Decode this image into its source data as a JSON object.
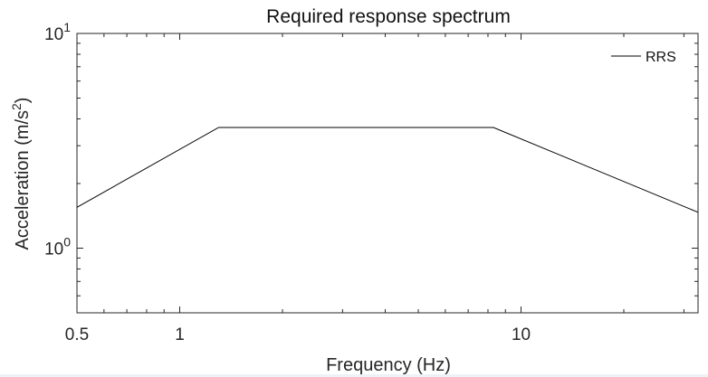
{
  "chart_data": {
    "type": "line",
    "title": "Required response spectrum",
    "xlabel": "Frequency (Hz)",
    "ylabel": "Acceleration (m/s²)",
    "x_scale": "log",
    "y_scale": "log",
    "xlim": [
      0.5,
      33
    ],
    "ylim": [
      0.5,
      10
    ],
    "x_ticks": [
      {
        "value": 0.5,
        "label": "0.5"
      },
      {
        "value": 1,
        "label": "1"
      },
      {
        "value": 10,
        "label": "10"
      }
    ],
    "y_ticks": [
      {
        "value": 1,
        "base": "10",
        "exp": "0"
      },
      {
        "value": 10,
        "base": "10",
        "exp": "1"
      }
    ],
    "grid": false,
    "legend": {
      "position": "top-right",
      "entries": [
        "RRS"
      ]
    },
    "series": [
      {
        "name": "RRS",
        "color": "#000000",
        "x": [
          0.5,
          1.3,
          8.3,
          33
        ],
        "y": [
          1.55,
          3.65,
          3.65,
          1.47
        ]
      }
    ]
  }
}
